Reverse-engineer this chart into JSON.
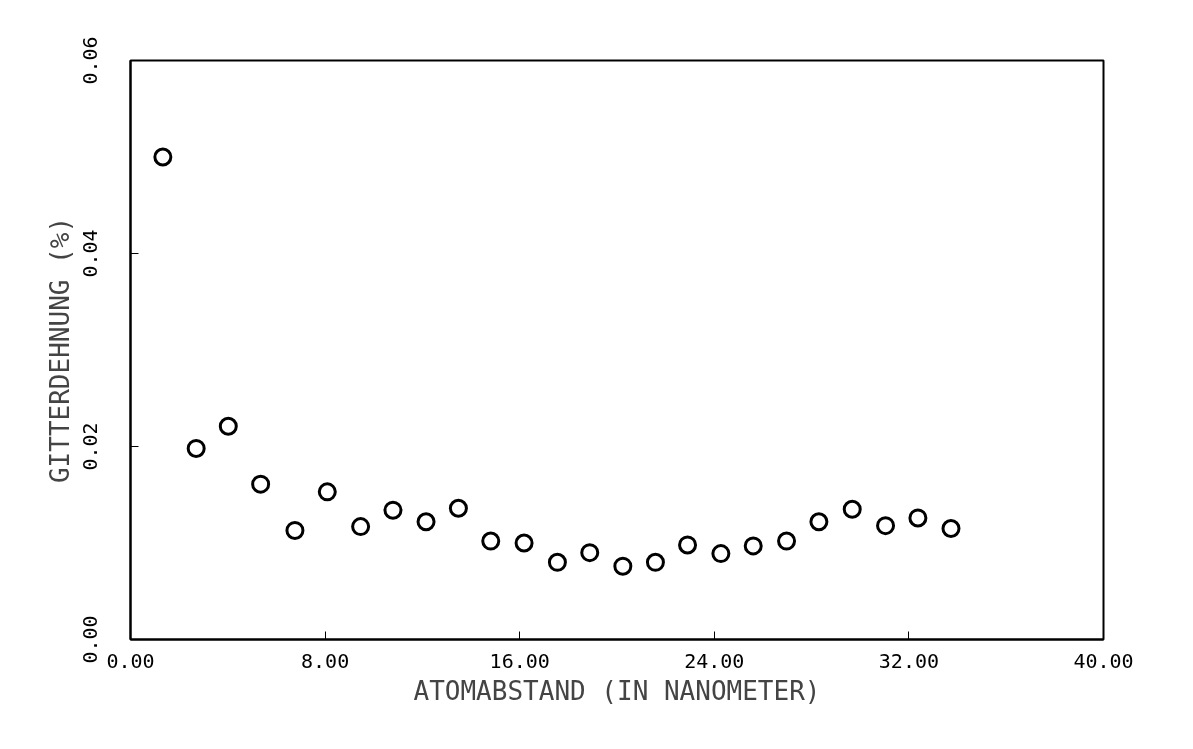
{
  "chart_data": {
    "type": "scatter",
    "xlabel": "ATOMABSTAND (IN NANOMETER)",
    "ylabel": "GITTERDEHNUNG (%)",
    "x": [
      1.33,
      2.7,
      4.02,
      5.35,
      6.76,
      8.09,
      9.46,
      10.79,
      12.15,
      13.48,
      14.81,
      16.18,
      17.55,
      18.88,
      20.24,
      21.58,
      22.9,
      24.27,
      25.6,
      26.97,
      28.3,
      29.67,
      31.04,
      32.37,
      33.73
    ],
    "values": [
      0.05,
      0.0198,
      0.0221,
      0.0161,
      0.0113,
      0.0153,
      0.0117,
      0.0134,
      0.0122,
      0.0136,
      0.0102,
      0.01,
      0.008,
      0.009,
      0.0076,
      0.008,
      0.0098,
      0.0089,
      0.0097,
      0.0102,
      0.0122,
      0.0135,
      0.0118,
      0.0126,
      0.0115
    ],
    "color": "#000000",
    "marker": "circle",
    "xlim": [
      0,
      40
    ],
    "ylim": [
      0,
      0.06
    ],
    "xticks": [
      {
        "value": 0,
        "label": "0.00"
      },
      {
        "value": 8,
        "label": "8.00"
      },
      {
        "value": 16,
        "label": "16.00"
      },
      {
        "value": 24,
        "label": "24.00"
      },
      {
        "value": 32,
        "label": "32.00"
      },
      {
        "value": 40,
        "label": "40.00"
      }
    ],
    "yticks": [
      {
        "value": 0,
        "label": "0.00"
      },
      {
        "value": 0.02,
        "label": "0.02"
      },
      {
        "value": 0.04,
        "label": "0.04"
      },
      {
        "value": 0.06,
        "label": "0.06"
      }
    ],
    "grid": false
  }
}
